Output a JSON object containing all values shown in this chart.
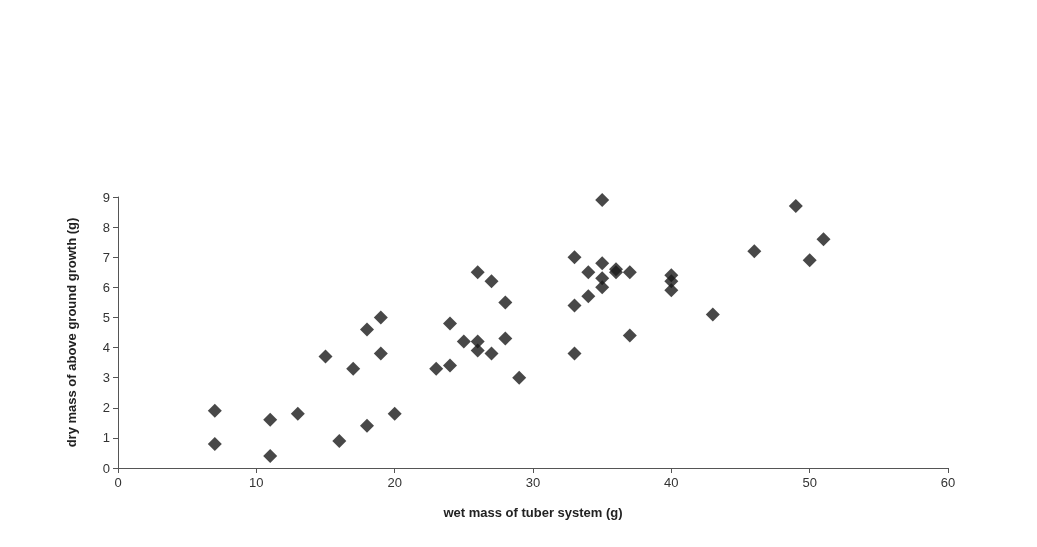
{
  "chart_data": {
    "type": "scatter",
    "xlabel": "wet mass of tuber system (g)",
    "ylabel": "dry mass of above ground growth (g)",
    "x": [
      7,
      7,
      11,
      11,
      13,
      15,
      16,
      17,
      18,
      18,
      19,
      19,
      20,
      23,
      24,
      24,
      25,
      26,
      26,
      26,
      27,
      27,
      28,
      28,
      29,
      33,
      33,
      33,
      34,
      34,
      35,
      35,
      35,
      35,
      36,
      36,
      37,
      37,
      40,
      40,
      40,
      43,
      46,
      49,
      50,
      51
    ],
    "values": [
      1.9,
      0.8,
      1.6,
      0.4,
      1.8,
      3.7,
      0.9,
      3.3,
      4.6,
      1.4,
      5.0,
      3.8,
      1.8,
      3.3,
      4.8,
      3.4,
      4.2,
      6.5,
      4.2,
      3.9,
      6.2,
      3.8,
      5.5,
      4.3,
      3.0,
      7.0,
      5.4,
      3.8,
      6.5,
      5.7,
      8.9,
      6.8,
      6.3,
      6.0,
      6.6,
      6.5,
      6.5,
      4.4,
      6.4,
      6.2,
      5.9,
      5.1,
      7.2,
      8.7,
      6.9,
      7.6
    ],
    "color": "#1a1a1a",
    "marker": "diamond",
    "grid": false,
    "xlim": [
      0,
      60
    ],
    "xticks": [
      0,
      10,
      20,
      30,
      40,
      50,
      60
    ],
    "ylim": [
      0,
      9
    ],
    "yticks": [
      0,
      1,
      2,
      3,
      4,
      5,
      6,
      7,
      8,
      9
    ]
  }
}
